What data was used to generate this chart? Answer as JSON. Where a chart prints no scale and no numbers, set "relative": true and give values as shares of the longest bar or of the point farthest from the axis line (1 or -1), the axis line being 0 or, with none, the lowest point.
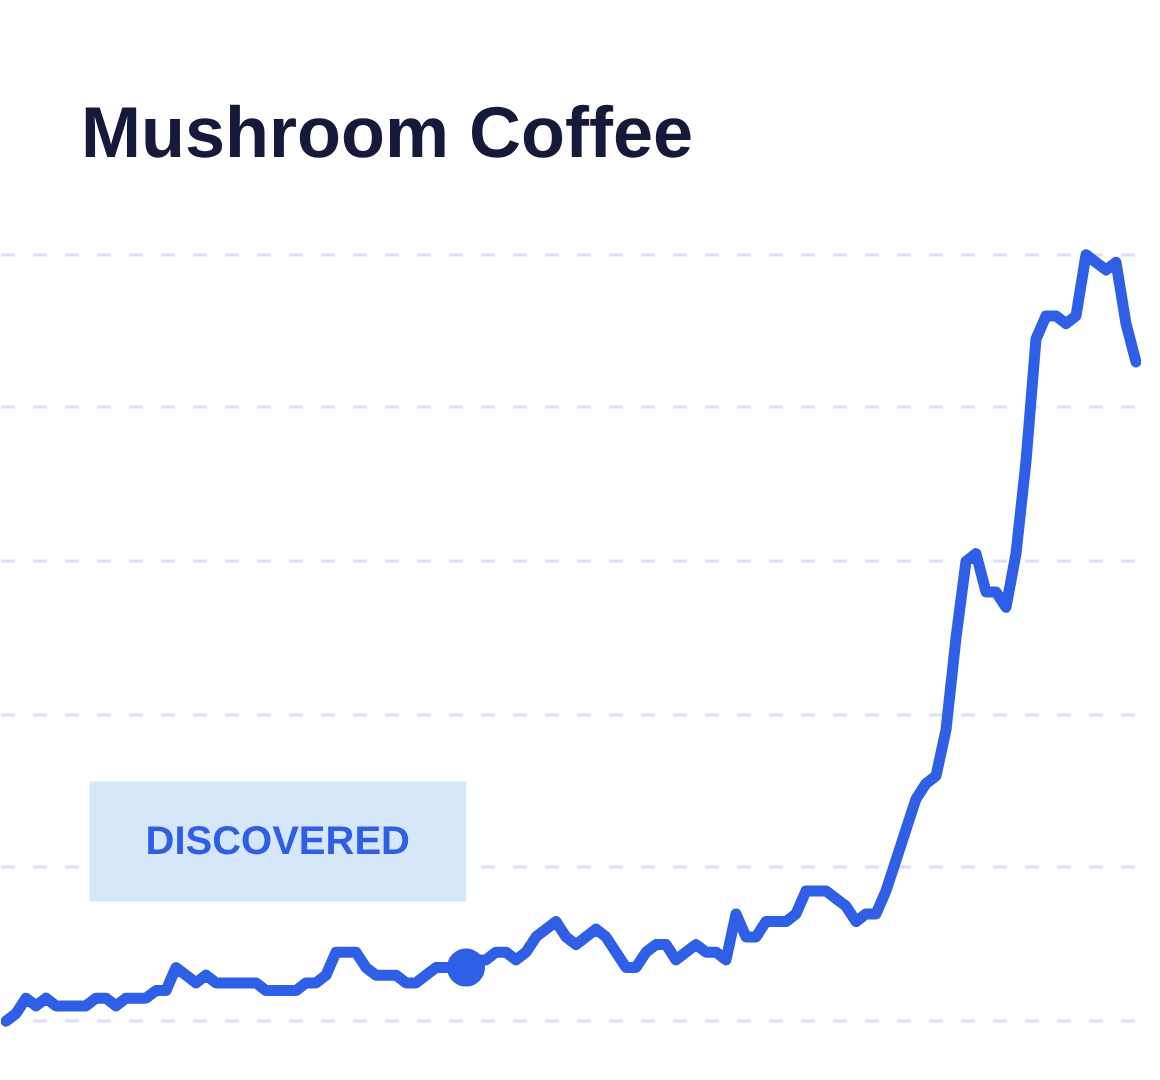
{
  "chart_data": {
    "type": "line",
    "title": "Mushroom Coffee",
    "relative": true,
    "grid": "y",
    "categories": [
      null,
      null,
      null,
      null,
      null,
      null,
      null,
      null,
      null,
      null,
      null,
      null,
      null,
      null,
      null,
      null,
      null,
      null,
      null,
      null,
      null,
      null,
      null,
      null,
      null,
      null,
      null,
      null,
      null,
      null,
      null,
      null,
      null,
      null,
      null,
      null,
      null,
      null,
      null,
      null,
      null,
      null,
      null,
      null,
      null,
      null,
      null,
      null,
      null,
      null,
      null,
      null,
      null,
      null,
      null,
      null,
      null,
      null,
      null,
      null,
      null,
      null,
      null,
      null,
      null,
      null,
      null,
      null,
      null,
      null,
      null,
      null,
      null,
      null,
      null,
      null,
      null,
      null,
      null,
      null,
      null,
      null,
      null,
      null,
      null,
      null,
      null,
      null,
      null,
      null,
      null,
      null,
      null,
      null,
      null,
      null,
      null,
      null,
      null,
      null,
      null,
      null,
      null,
      null,
      null,
      null,
      null,
      null,
      null,
      null,
      null,
      null,
      null,
      null
    ],
    "series": [
      {
        "color": "#2f5fe6",
        "values": [
          0,
          0.01,
          0.03,
          0.02,
          0.03,
          0.02,
          0.02,
          0.02,
          0.02,
          0.03,
          0.03,
          0.02,
          0.03,
          0.03,
          0.03,
          0.04,
          0.04,
          0.07,
          0.06,
          0.05,
          0.06,
          0.05,
          0.05,
          0.05,
          0.05,
          0.05,
          0.04,
          0.04,
          0.04,
          0.04,
          0.05,
          0.05,
          0.06,
          0.09,
          0.09,
          0.09,
          0.07,
          0.06,
          0.06,
          0.06,
          0.05,
          0.05,
          0.06,
          0.07,
          0.07,
          0.07,
          0.07,
          0.08,
          0.08,
          0.09,
          0.09,
          0.08,
          0.09,
          0.11,
          0.12,
          0.13,
          0.11,
          0.1,
          0.11,
          0.12,
          0.11,
          0.09,
          0.07,
          0.07,
          0.09,
          0.1,
          0.1,
          0.08,
          0.09,
          0.1,
          0.09,
          0.09,
          0.08,
          0.14,
          0.11,
          0.11,
          0.13,
          0.13,
          0.13,
          0.14,
          0.17,
          0.17,
          0.17,
          0.16,
          0.15,
          0.13,
          0.14,
          0.14,
          0.17,
          0.21,
          0.25,
          0.29,
          0.31,
          0.32,
          0.38,
          0.5,
          0.6,
          0.61,
          0.56,
          0.56,
          0.54,
          0.61,
          0.73,
          0.89,
          0.92,
          0.92,
          0.91,
          0.92,
          1,
          0.99,
          0.98,
          0.99,
          0.91,
          0.86
        ]
      },
      {
        "color": "#2f5fe6",
        "marker": "circle",
        "values": [
          null,
          null,
          null,
          null,
          null,
          null,
          null,
          null,
          null,
          null,
          null,
          null,
          null,
          null,
          null,
          null,
          null,
          null,
          null,
          null,
          null,
          null,
          null,
          null,
          null,
          null,
          null,
          null,
          null,
          null,
          null,
          null,
          null,
          null,
          null,
          null,
          null,
          null,
          null,
          null,
          null,
          null,
          null,
          null,
          null,
          null,
          0.07,
          null,
          null,
          null,
          null,
          null,
          null,
          null,
          null,
          null,
          null,
          null,
          null,
          null,
          null,
          null,
          null,
          null,
          null,
          null,
          null,
          null,
          null,
          null,
          null,
          null,
          null,
          null,
          null,
          null,
          null,
          null,
          null,
          null,
          null,
          null,
          null,
          null,
          null,
          null,
          null,
          null,
          null,
          null,
          null,
          null,
          null,
          null,
          null,
          null,
          null,
          null,
          null,
          null,
          null,
          null,
          null,
          null,
          null,
          null,
          null,
          null,
          null,
          null,
          null,
          null,
          null,
          null
        ]
      }
    ],
    "annotations": [
      "DISCOVERED"
    ]
  }
}
